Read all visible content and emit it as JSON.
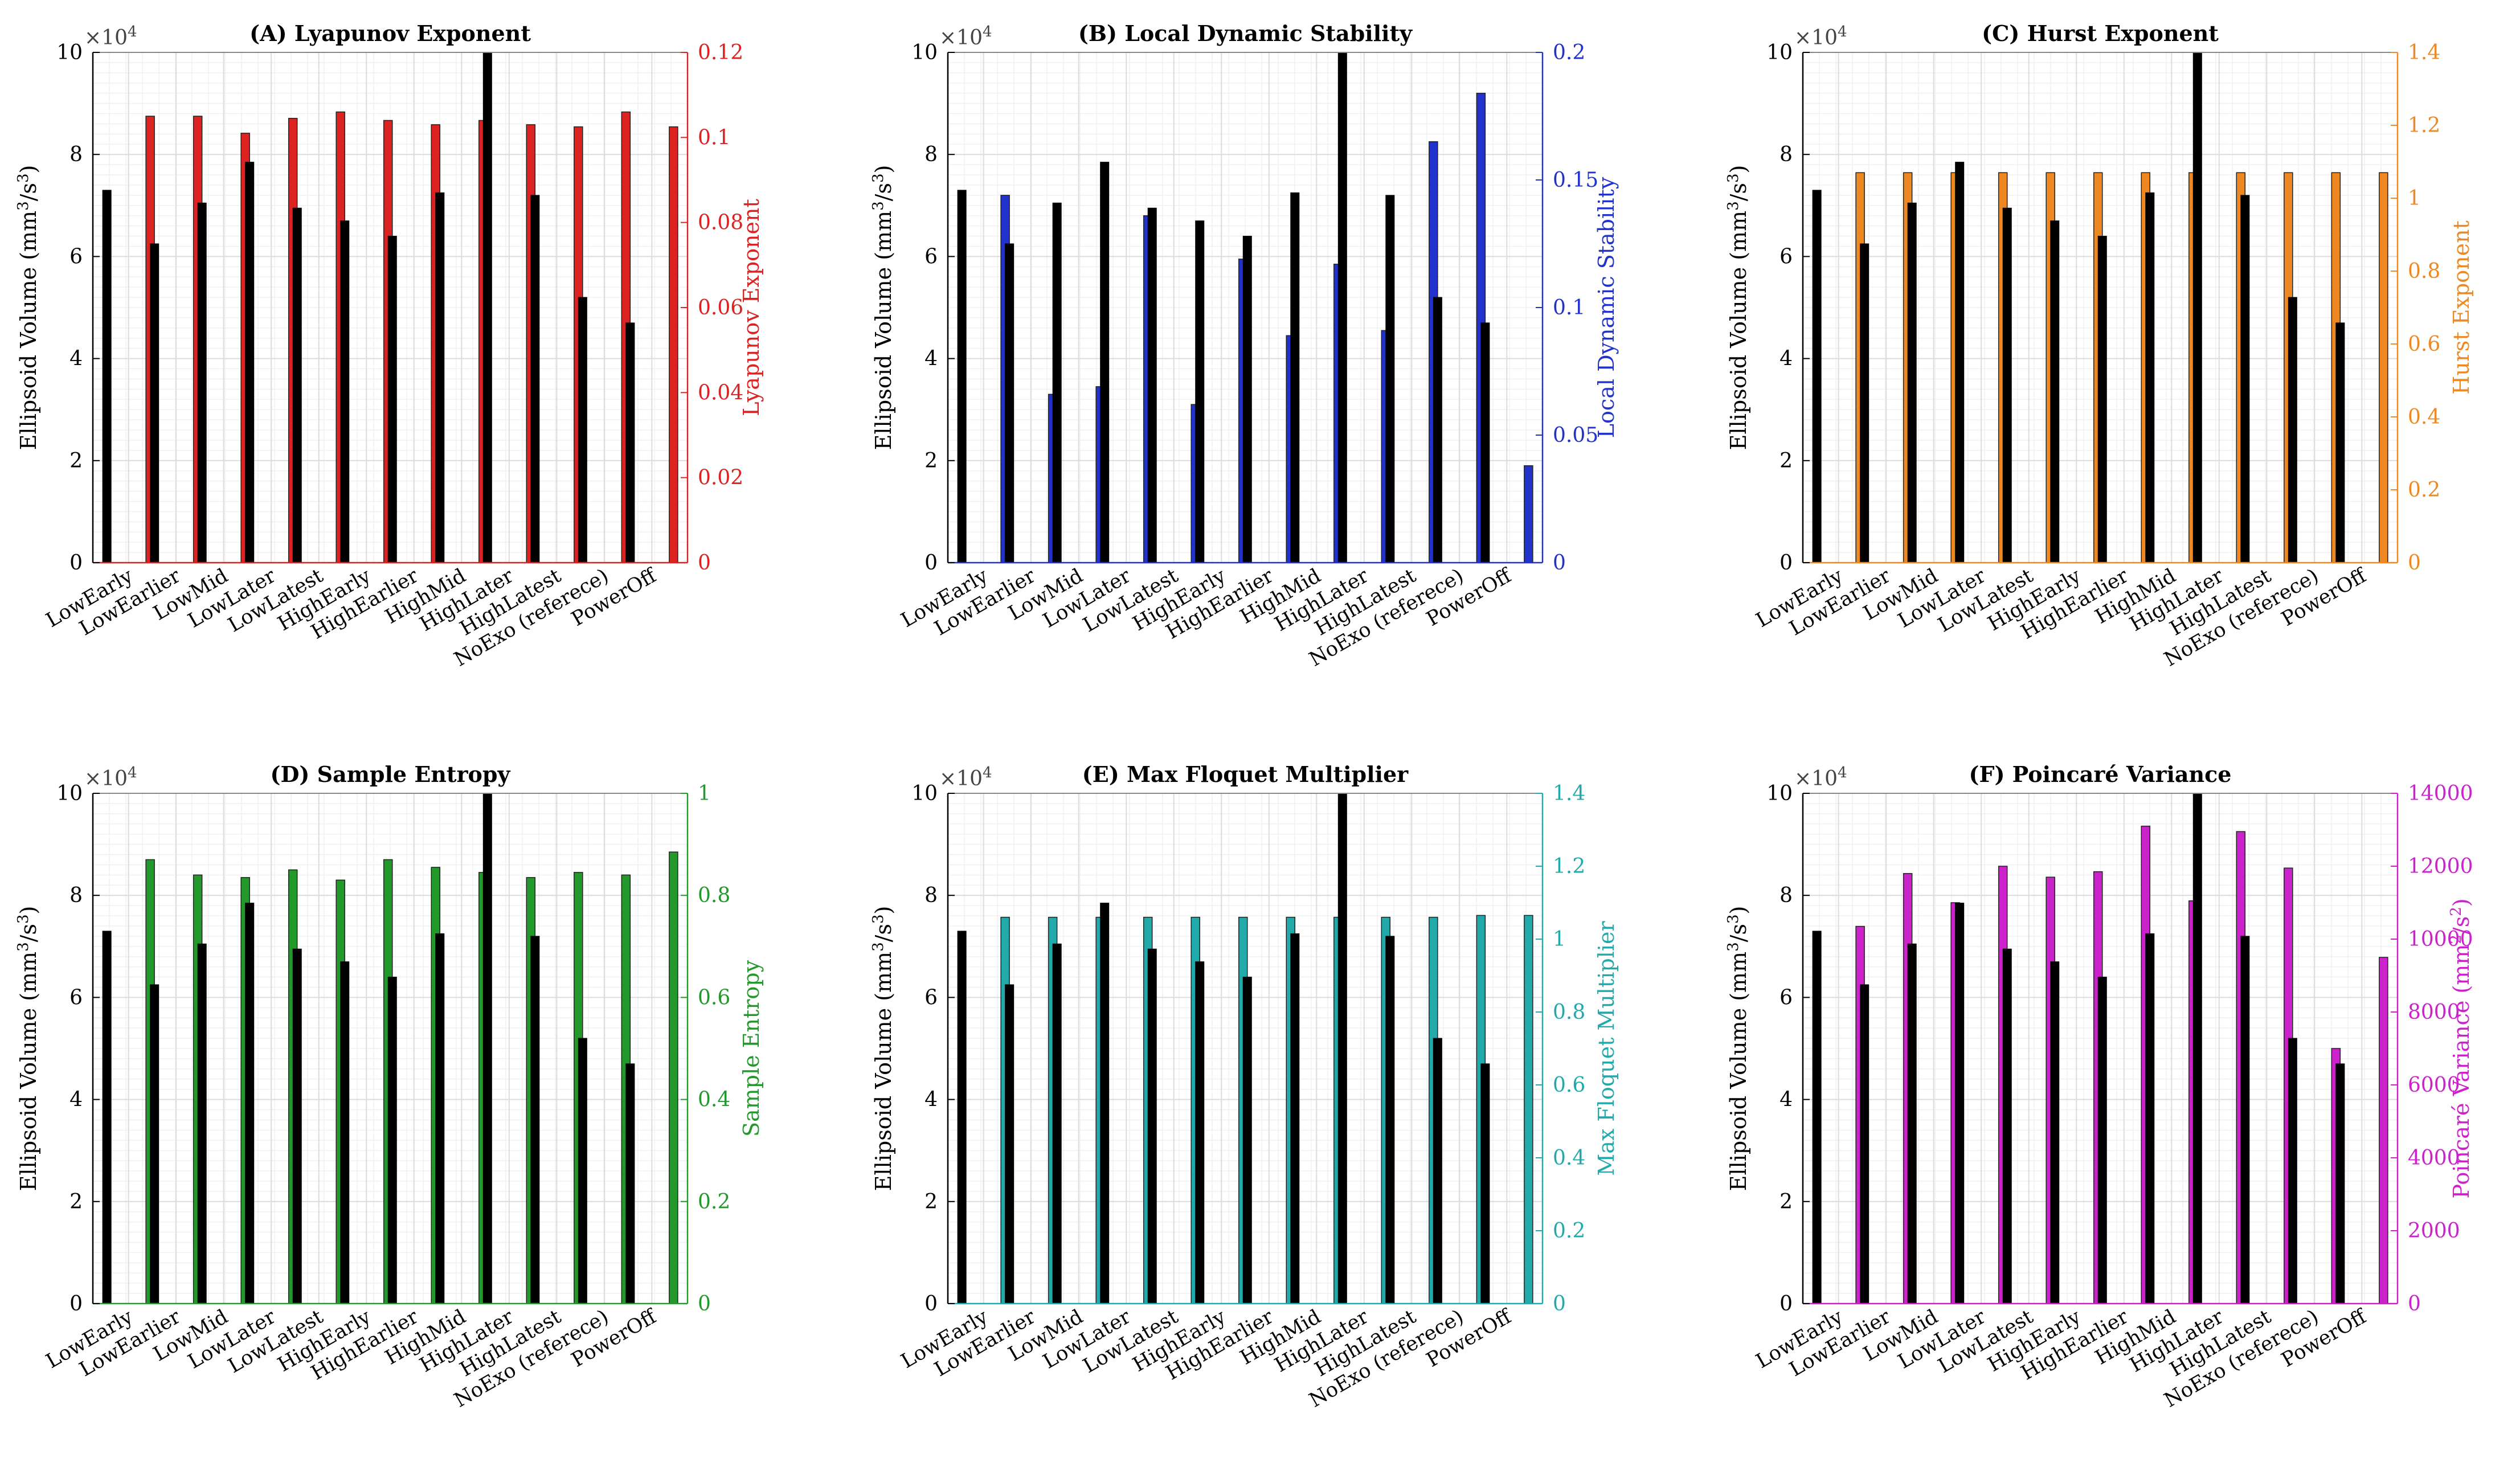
{
  "figure": {
    "categories": [
      "LowEarly",
      "LowEarlier",
      "LowMid",
      "LowLater",
      "LowLatest",
      "HighEarly",
      "HighEarlier",
      "HighMid",
      "HighLater",
      "HighLatest",
      "NoExo (referece)",
      "PowerOff"
    ],
    "left_axis": {
      "label_main": "Ellipsoid Volume (mm",
      "label_sup1": "3",
      "label_mid": "/s",
      "label_sup2": "3",
      "label_end": ")",
      "exponent_base": "×10",
      "exponent_power": "4",
      "ylim": [
        0,
        10
      ],
      "ticks": [
        "0",
        "2",
        "4",
        "6",
        "8",
        "10"
      ],
      "color": "#000000"
    },
    "ellipsoid_values": [
      7.3,
      6.25,
      7.05,
      7.85,
      6.95,
      6.7,
      6.4,
      7.25,
      10.0,
      7.2,
      5.2,
      4.7
    ]
  },
  "chart_data": [
    {
      "type": "bar",
      "title": "(A) Lyapunov Exponent",
      "right_label": "Lyapunov Exponent",
      "right_label_parts": null,
      "color": "#dd2222",
      "right_ylim": [
        0,
        0.12
      ],
      "right_ticks": [
        "0",
        "0.02",
        "0.04",
        "0.06",
        "0.08",
        "0.1",
        "0.12"
      ],
      "series": [
        {
          "name": "Ellipsoid Volume",
          "axis": "left",
          "values": [
            7.3,
            6.25,
            7.05,
            7.85,
            6.95,
            6.7,
            6.4,
            7.25,
            10.0,
            7.2,
            5.2,
            4.7
          ]
        },
        {
          "name": "Lyapunov Exponent",
          "axis": "right",
          "values": [
            0.105,
            0.105,
            0.101,
            0.1045,
            0.106,
            0.104,
            0.103,
            0.104,
            0.103,
            0.1025,
            0.106,
            0.1025
          ]
        }
      ]
    },
    {
      "type": "bar",
      "title": "(B) Local Dynamic Stability",
      "right_label": "Local Dynamic Stability",
      "right_label_parts": null,
      "color": "#2233cc",
      "right_ylim": [
        0,
        0.2
      ],
      "right_ticks": [
        "0",
        "0.05",
        "0.1",
        "0.15",
        "0.2"
      ],
      "series": [
        {
          "name": "Ellipsoid Volume",
          "axis": "left",
          "values": [
            7.3,
            6.25,
            7.05,
            7.85,
            6.95,
            6.7,
            6.4,
            7.25,
            10.0,
            7.2,
            5.2,
            4.7
          ]
        },
        {
          "name": "Local Dynamic Stability",
          "axis": "right",
          "values": [
            0.144,
            0.066,
            0.069,
            0.136,
            0.062,
            0.119,
            0.089,
            0.117,
            0.091,
            0.165,
            0.184,
            0.038
          ]
        }
      ]
    },
    {
      "type": "bar",
      "title": "(C) Hurst Exponent",
      "right_label": "Hurst Exponent",
      "right_label_parts": null,
      "color": "#ee8822",
      "right_ylim": [
        0,
        1.4
      ],
      "right_ticks": [
        "0",
        "0.2",
        "0.4",
        "0.6",
        "0.8",
        "1",
        "1.2",
        "1.4"
      ],
      "series": [
        {
          "name": "Ellipsoid Volume",
          "axis": "left",
          "values": [
            7.3,
            6.25,
            7.05,
            7.85,
            6.95,
            6.7,
            6.4,
            7.25,
            10.0,
            7.2,
            5.2,
            4.7
          ]
        },
        {
          "name": "Hurst Exponent",
          "axis": "right",
          "values": [
            1.07,
            1.07,
            1.07,
            1.07,
            1.07,
            1.07,
            1.07,
            1.07,
            1.07,
            1.07,
            1.07,
            1.07
          ]
        }
      ]
    },
    {
      "type": "bar",
      "title": "(D) Sample Entropy",
      "right_label": "Sample Entropy",
      "right_label_parts": null,
      "color": "#22992a",
      "right_ylim": [
        0,
        1
      ],
      "right_ticks": [
        "0",
        "0.2",
        "0.4",
        "0.6",
        "0.8",
        "1"
      ],
      "series": [
        {
          "name": "Ellipsoid Volume",
          "axis": "left",
          "values": [
            7.3,
            6.25,
            7.05,
            7.85,
            6.95,
            6.7,
            6.4,
            7.25,
            10.0,
            7.2,
            5.2,
            4.7
          ]
        },
        {
          "name": "Sample Entropy",
          "axis": "right",
          "values": [
            0.87,
            0.84,
            0.835,
            0.85,
            0.83,
            0.87,
            0.855,
            0.845,
            0.835,
            0.845,
            0.84,
            0.885
          ]
        }
      ]
    },
    {
      "type": "bar",
      "title": "(E) Max Floquet Multiplier",
      "right_label": "Max Floquet Multiplier",
      "right_label_parts": null,
      "color": "#22aaaa",
      "right_ylim": [
        0,
        1.4
      ],
      "right_ticks": [
        "0",
        "0.2",
        "0.4",
        "0.6",
        "0.8",
        "1",
        "1.2",
        "1.4"
      ],
      "series": [
        {
          "name": "Ellipsoid Volume",
          "axis": "left",
          "values": [
            7.3,
            6.25,
            7.05,
            7.85,
            6.95,
            6.7,
            6.4,
            7.25,
            10.0,
            7.2,
            5.2,
            4.7
          ]
        },
        {
          "name": "Max Floquet Multiplier",
          "axis": "right",
          "values": [
            1.06,
            1.06,
            1.06,
            1.06,
            1.06,
            1.06,
            1.06,
            1.06,
            1.06,
            1.06,
            1.065,
            1.065
          ]
        }
      ]
    },
    {
      "type": "bar",
      "title": "(F) Poincaré Variance",
      "right_label": "Poincaré Variance (mm",
      "right_label_parts": {
        "sup1": "2",
        "mid": "/s",
        "sup2": "2",
        "end": ")"
      },
      "color": "#cc22cc",
      "right_ylim": [
        0,
        14000
      ],
      "right_ticks": [
        "0",
        "2000",
        "4000",
        "6000",
        "8000",
        "10000",
        "12000",
        "14000"
      ],
      "series": [
        {
          "name": "Ellipsoid Volume",
          "axis": "left",
          "values": [
            7.3,
            6.25,
            7.05,
            7.85,
            6.95,
            6.7,
            6.4,
            7.25,
            10.0,
            7.2,
            5.2,
            4.7
          ]
        },
        {
          "name": "Poincaré Variance",
          "axis": "right",
          "values": [
            10350,
            11800,
            11000,
            12000,
            11700,
            11850,
            13100,
            11050,
            12950,
            11950,
            7000,
            9500
          ]
        }
      ]
    }
  ]
}
